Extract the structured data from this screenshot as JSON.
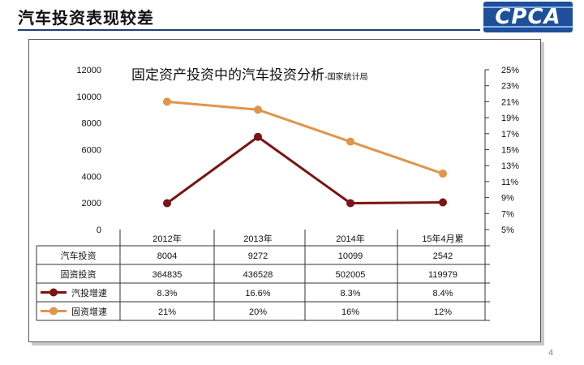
{
  "slide": {
    "title": "汽车投资表现较差",
    "logo_text": "CPCA",
    "page_number": "4"
  },
  "chart_data": {
    "type": "line",
    "title": "固定资产投资中的汽车投资分析",
    "source": "-国家统计局",
    "categories": [
      "2012年",
      "2013年",
      "2014年",
      "15年4月累"
    ],
    "left_axis": {
      "min": 0,
      "max": 12000,
      "ticks": [
        "0",
        "2000",
        "4000",
        "6000",
        "8000",
        "10000",
        "12000"
      ]
    },
    "right_axis": {
      "min": 5,
      "max": 25,
      "unit": "%",
      "ticks": [
        "5%",
        "7%",
        "9%",
        "11%",
        "13%",
        "15%",
        "17%",
        "19%",
        "21%",
        "23%",
        "25%"
      ]
    },
    "series": [
      {
        "name": "汽投增速",
        "axis": "right",
        "color": "#7b1414",
        "values": [
          8.3,
          16.6,
          8.3,
          8.4
        ],
        "labels": [
          "8.3%",
          "16.6%",
          "8.3%",
          "8.4%"
        ]
      },
      {
        "name": "固资增速",
        "axis": "right",
        "color": "#e0954a",
        "values": [
          21,
          20,
          16,
          12
        ],
        "labels": [
          "21%",
          "20%",
          "16%",
          "12%"
        ]
      }
    ],
    "table": {
      "rows": [
        {
          "name": "汽车投资",
          "values": [
            "8004",
            "9272",
            "10099",
            "2542"
          ]
        },
        {
          "name": "固资投资",
          "values": [
            "364835",
            "436528",
            "502005",
            "119979"
          ]
        }
      ]
    },
    "grid": false
  }
}
